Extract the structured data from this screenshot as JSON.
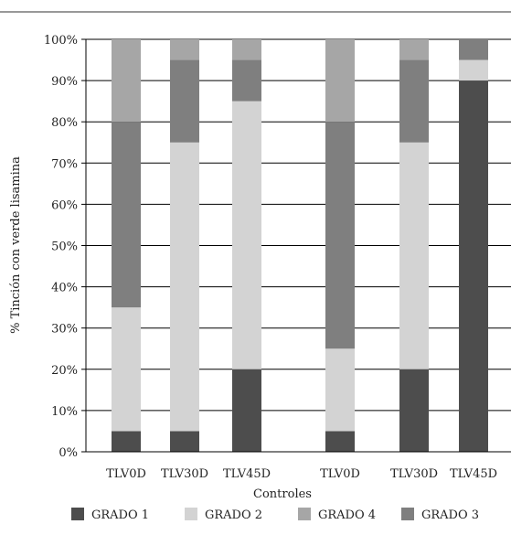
{
  "chart_data": {
    "type": "bar",
    "stacked": true,
    "categories": [
      "TLV0D",
      "TLV30D",
      "TLV45D",
      "TLV0D",
      "TLV30D",
      "TLV45D"
    ],
    "ylabel": "% Tinción con verde lisamina",
    "xlabel": "Controles",
    "ylim": [
      0,
      100
    ],
    "yticks": [
      "0%",
      "10%",
      "20%",
      "30%",
      "40%",
      "50%",
      "60%",
      "70%",
      "80%",
      "90%",
      "100%"
    ],
    "grid": true,
    "legend_position": "bottom",
    "series": [
      {
        "name": "GRADO 1",
        "color": "#4d4d4d",
        "values": [
          5,
          5,
          20,
          5,
          20,
          90
        ]
      },
      {
        "name": "GRADO 2",
        "color": "#d3d3d3",
        "values": [
          30,
          70,
          65,
          20,
          55,
          5
        ]
      },
      {
        "name": "GRADO 3",
        "color": "#7f7f7f",
        "values": [
          45,
          20,
          10,
          55,
          20,
          5
        ]
      },
      {
        "name": "GRADO 4",
        "color": "#a6a6a6",
        "values": [
          20,
          5,
          5,
          20,
          5,
          0
        ]
      }
    ],
    "legend_order": [
      "GRADO 1",
      "GRADO 2",
      "GRADO 4",
      "GRADO 3"
    ]
  }
}
